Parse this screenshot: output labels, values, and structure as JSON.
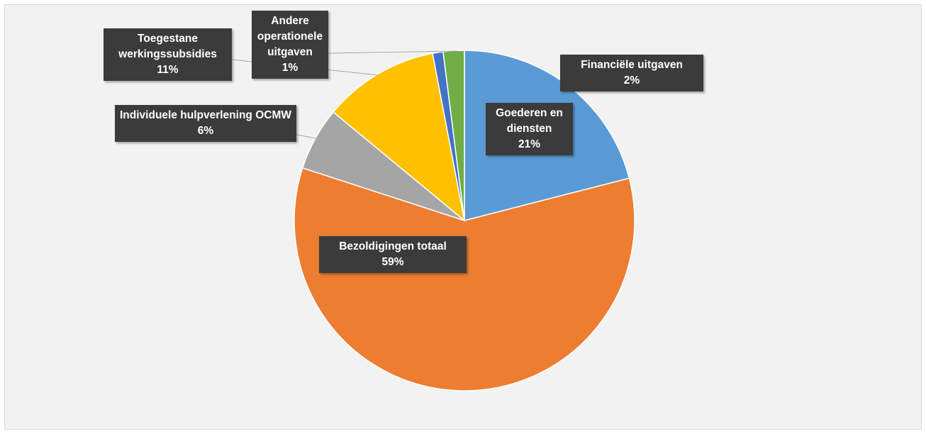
{
  "chart_data": {
    "type": "pie",
    "categories": [
      "Goederen en diensten",
      "Bezoldigingen totaal",
      "Individuele hulpverlening OCMW",
      "Toegestane werkingssubsidies",
      "Andere operationele uitgaven",
      "Financiële uitgaven"
    ],
    "values": [
      21,
      59,
      6,
      11,
      1,
      2
    ],
    "value_labels": [
      "21%",
      "59%",
      "6%",
      "11%",
      "1%",
      "2%"
    ],
    "colors": [
      "#5b9bd5",
      "#ed7d31",
      "#a5a5a5",
      "#ffc000",
      "#4472c4",
      "#70ad47"
    ]
  }
}
